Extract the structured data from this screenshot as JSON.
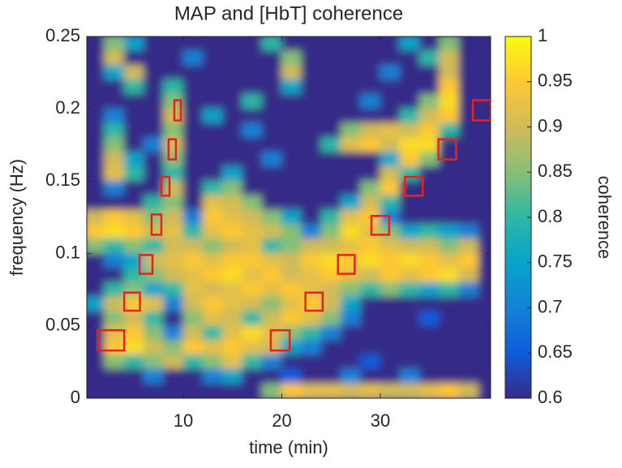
{
  "chart_data": {
    "type": "heatmap",
    "title": "MAP and [HbT] coherence",
    "xlabel": "time (min)",
    "ylabel": "frequency (Hz)",
    "colorbar_label": "coherence",
    "xlim": [
      0.2,
      41.2
    ],
    "ylim": [
      0,
      0.25
    ],
    "xticks": [
      10,
      20,
      30
    ],
    "yticks": [
      0,
      0.05,
      0.1,
      0.15,
      0.2,
      0.25
    ],
    "clim": [
      0.6,
      1
    ],
    "cticks": [
      0.6,
      0.65,
      0.7,
      0.75,
      0.8,
      0.85,
      0.9,
      0.95,
      1
    ],
    "colormap": [
      "#352a87",
      "#0f5cdd",
      "#1481d6",
      "#06a4ca",
      "#2eb7a4",
      "#87bf77",
      "#d1bb59",
      "#fec832",
      "#f9fb0e"
    ],
    "x": [
      1,
      3,
      5,
      7,
      9,
      11,
      13,
      15,
      17,
      19,
      21,
      23,
      25,
      27,
      29,
      31,
      33,
      35,
      37,
      39,
      41
    ],
    "y": [
      0.245,
      0.235,
      0.225,
      0.215,
      0.205,
      0.195,
      0.185,
      0.175,
      0.165,
      0.155,
      0.145,
      0.135,
      0.125,
      0.115,
      0.105,
      0.095,
      0.085,
      0.075,
      0.065,
      0.055,
      0.045,
      0.035,
      0.025,
      0.015,
      0.005
    ],
    "z": [
      [
        0.6,
        0.85,
        0.75,
        0.6,
        0.6,
        0.6,
        0.6,
        0.6,
        0.6,
        0.8,
        0.6,
        0.6,
        0.6,
        0.6,
        0.6,
        0.6,
        0.75,
        0.6,
        0.85,
        0.6,
        0.6
      ],
      [
        0.6,
        0.9,
        0.6,
        0.6,
        0.6,
        0.7,
        0.6,
        0.6,
        0.6,
        0.6,
        0.85,
        0.6,
        0.6,
        0.6,
        0.6,
        0.6,
        0.6,
        0.8,
        0.9,
        0.6,
        0.6
      ],
      [
        0.6,
        0.75,
        0.9,
        0.6,
        0.6,
        0.6,
        0.6,
        0.6,
        0.6,
        0.6,
        0.9,
        0.6,
        0.6,
        0.6,
        0.6,
        0.7,
        0.6,
        0.6,
        0.9,
        0.6,
        0.6
      ],
      [
        0.6,
        0.6,
        0.8,
        0.6,
        0.8,
        0.6,
        0.6,
        0.6,
        0.6,
        0.6,
        0.75,
        0.6,
        0.6,
        0.6,
        0.6,
        0.6,
        0.6,
        0.6,
        0.95,
        0.6,
        0.6
      ],
      [
        0.6,
        0.6,
        0.6,
        0.6,
        0.85,
        0.6,
        0.6,
        0.6,
        0.8,
        0.6,
        0.6,
        0.6,
        0.6,
        0.6,
        0.7,
        0.6,
        0.6,
        0.85,
        0.97,
        0.6,
        0.6
      ],
      [
        0.6,
        0.7,
        0.6,
        0.6,
        0.9,
        0.6,
        0.75,
        0.6,
        0.6,
        0.6,
        0.6,
        0.6,
        0.6,
        0.6,
        0.6,
        0.6,
        0.8,
        0.9,
        0.95,
        0.6,
        0.6
      ],
      [
        0.6,
        0.8,
        0.6,
        0.6,
        0.85,
        0.6,
        0.6,
        0.6,
        0.7,
        0.6,
        0.6,
        0.6,
        0.6,
        0.85,
        0.9,
        0.92,
        0.9,
        0.95,
        0.8,
        0.6,
        0.6
      ],
      [
        0.6,
        0.85,
        0.6,
        0.7,
        0.9,
        0.6,
        0.6,
        0.6,
        0.6,
        0.6,
        0.6,
        0.6,
        0.8,
        0.92,
        0.95,
        0.9,
        0.97,
        0.97,
        0.6,
        0.6,
        0.6
      ],
      [
        0.6,
        0.9,
        0.75,
        0.6,
        0.85,
        0.6,
        0.6,
        0.6,
        0.6,
        0.7,
        0.6,
        0.6,
        0.6,
        0.6,
        0.6,
        0.75,
        0.95,
        0.85,
        0.6,
        0.6,
        0.6
      ],
      [
        0.6,
        0.92,
        0.8,
        0.6,
        0.8,
        0.6,
        0.6,
        0.75,
        0.6,
        0.6,
        0.6,
        0.6,
        0.6,
        0.6,
        0.6,
        0.9,
        0.8,
        0.6,
        0.6,
        0.6,
        0.6
      ],
      [
        0.6,
        0.7,
        0.6,
        0.6,
        0.9,
        0.6,
        0.8,
        0.85,
        0.6,
        0.6,
        0.6,
        0.6,
        0.6,
        0.6,
        0.85,
        0.95,
        0.6,
        0.6,
        0.6,
        0.6,
        0.6
      ],
      [
        0.6,
        0.6,
        0.6,
        0.8,
        0.85,
        0.6,
        0.92,
        0.9,
        0.85,
        0.6,
        0.6,
        0.6,
        0.6,
        0.75,
        0.9,
        0.8,
        0.6,
        0.6,
        0.6,
        0.6,
        0.6
      ],
      [
        0.9,
        0.95,
        0.92,
        0.85,
        0.9,
        0.7,
        0.95,
        0.92,
        0.9,
        0.85,
        0.75,
        0.6,
        0.8,
        0.92,
        0.95,
        0.7,
        0.6,
        0.6,
        0.6,
        0.6,
        0.6
      ],
      [
        0.95,
        0.97,
        0.95,
        0.9,
        0.92,
        0.8,
        0.92,
        0.95,
        0.92,
        0.9,
        0.85,
        0.7,
        0.85,
        0.97,
        0.92,
        0.85,
        0.75,
        0.8,
        0.75,
        0.7,
        0.6
      ],
      [
        0.85,
        0.8,
        0.85,
        0.8,
        0.9,
        0.9,
        0.85,
        0.9,
        0.92,
        0.8,
        0.85,
        0.9,
        0.9,
        0.92,
        0.95,
        0.92,
        0.9,
        0.9,
        0.85,
        0.9,
        0.6
      ],
      [
        0.6,
        0.7,
        0.75,
        0.9,
        0.92,
        0.95,
        0.92,
        0.95,
        0.95,
        0.92,
        0.9,
        0.95,
        0.97,
        0.95,
        0.97,
        0.95,
        0.97,
        0.95,
        0.92,
        0.95,
        0.6
      ],
      [
        0.6,
        0.6,
        0.8,
        0.85,
        0.9,
        0.92,
        0.95,
        0.97,
        0.92,
        0.95,
        0.9,
        0.92,
        0.95,
        0.92,
        0.9,
        0.95,
        0.92,
        0.95,
        0.97,
        0.9,
        0.6
      ],
      [
        0.6,
        0.8,
        0.85,
        0.75,
        0.8,
        0.92,
        0.9,
        0.92,
        0.95,
        0.92,
        0.95,
        0.92,
        0.9,
        0.85,
        0.8,
        0.85,
        0.8,
        0.75,
        0.8,
        0.7,
        0.6
      ],
      [
        0.75,
        0.9,
        0.95,
        0.92,
        0.7,
        0.9,
        0.95,
        0.92,
        0.9,
        0.85,
        0.92,
        0.95,
        0.9,
        0.75,
        0.6,
        0.6,
        0.6,
        0.6,
        0.6,
        0.6,
        0.6
      ],
      [
        0.6,
        0.85,
        0.9,
        0.8,
        0.6,
        0.85,
        0.92,
        0.9,
        0.8,
        0.9,
        0.95,
        0.92,
        0.85,
        0.7,
        0.6,
        0.6,
        0.6,
        0.65,
        0.6,
        0.6,
        0.6
      ],
      [
        0.6,
        0.92,
        0.95,
        0.85,
        0.7,
        0.9,
        0.8,
        0.92,
        0.97,
        0.92,
        0.85,
        0.8,
        0.7,
        0.6,
        0.6,
        0.6,
        0.6,
        0.6,
        0.6,
        0.6,
        0.6
      ],
      [
        0.6,
        0.95,
        0.97,
        0.9,
        0.85,
        0.95,
        0.92,
        0.95,
        0.92,
        0.9,
        0.75,
        0.7,
        0.6,
        0.6,
        0.6,
        0.6,
        0.6,
        0.6,
        0.6,
        0.6,
        0.6
      ],
      [
        0.6,
        0.85,
        0.8,
        0.85,
        0.9,
        0.8,
        0.85,
        0.92,
        0.8,
        0.7,
        0.6,
        0.6,
        0.6,
        0.6,
        0.65,
        0.6,
        0.6,
        0.6,
        0.6,
        0.6,
        0.6
      ],
      [
        0.6,
        0.6,
        0.6,
        0.7,
        0.6,
        0.6,
        0.7,
        0.75,
        0.6,
        0.6,
        0.65,
        0.6,
        0.6,
        0.7,
        0.6,
        0.6,
        0.7,
        0.6,
        0.6,
        0.6,
        0.6
      ],
      [
        0.6,
        0.6,
        0.6,
        0.6,
        0.6,
        0.6,
        0.6,
        0.6,
        0.6,
        0.85,
        0.95,
        0.92,
        0.92,
        0.9,
        0.92,
        0.9,
        0.9,
        0.92,
        0.95,
        0.9,
        0.6
      ]
    ],
    "box_color": "#e8221a",
    "boxes": [
      {
        "x": [
          1.3,
          4.0
        ],
        "y": [
          0.033,
          0.047
        ]
      },
      {
        "x": [
          4.0,
          5.6
        ],
        "y": [
          0.0605,
          0.073
        ]
      },
      {
        "x": [
          5.55,
          6.87
        ],
        "y": [
          0.086,
          0.099
        ]
      },
      {
        "x": [
          6.78,
          7.77
        ],
        "y": [
          0.113,
          0.127
        ]
      },
      {
        "x": [
          7.77,
          8.6
        ],
        "y": [
          0.14,
          0.153
        ]
      },
      {
        "x": [
          8.5,
          9.25
        ],
        "y": [
          0.165,
          0.179
        ]
      },
      {
        "x": [
          9.09,
          9.75
        ],
        "y": [
          0.192,
          0.206
        ]
      },
      {
        "x": [
          18.88,
          20.8
        ],
        "y": [
          0.033,
          0.047
        ]
      },
      {
        "x": [
          22.4,
          24.15
        ],
        "y": [
          0.0605,
          0.073
        ]
      },
      {
        "x": [
          25.7,
          27.4
        ],
        "y": [
          0.086,
          0.099
        ]
      },
      {
        "x": [
          29.1,
          30.9
        ],
        "y": [
          0.113,
          0.126
        ]
      },
      {
        "x": [
          32.5,
          34.3
        ],
        "y": [
          0.14,
          0.153
        ]
      },
      {
        "x": [
          35.9,
          37.7
        ],
        "y": [
          0.165,
          0.179
        ]
      },
      {
        "x": [
          39.4,
          41.2
        ],
        "y": [
          0.192,
          0.206
        ]
      }
    ]
  }
}
